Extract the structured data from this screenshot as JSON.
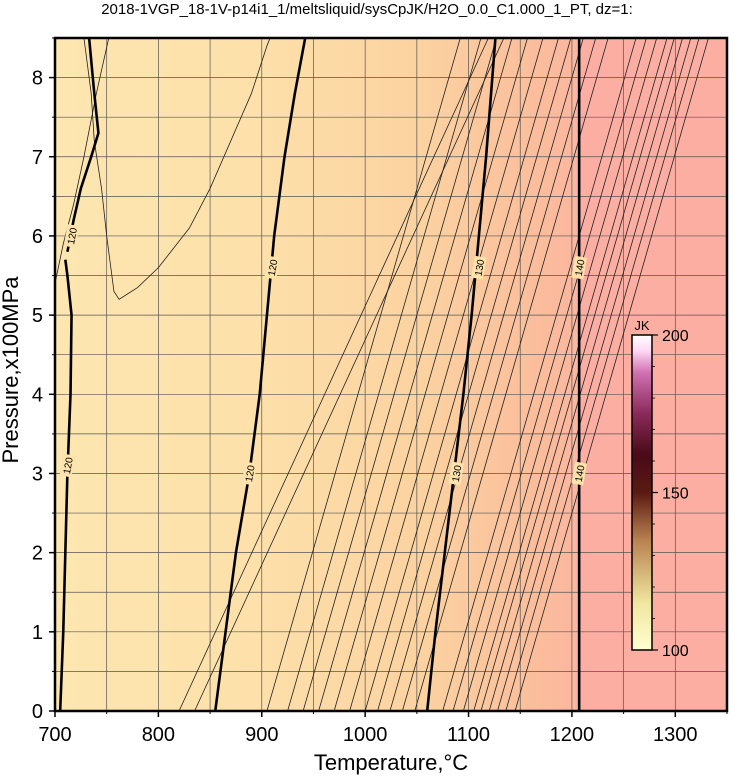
{
  "chart_data": {
    "type": "contour",
    "title": "2018-1VGP_18-1V-p14i1_1/meltsliquid/sysCpJK/H2O_0.0_C1.000_1_PT, dz=1:",
    "xlabel": "Temperature,°C",
    "ylabel": "Pressure,x100MPa",
    "xlim": [
      700,
      1350
    ],
    "ylim": [
      0,
      8.5
    ],
    "xticks": [
      700,
      800,
      900,
      1000,
      1100,
      1200,
      1300
    ],
    "yticks": [
      0,
      1,
      2,
      3,
      4,
      5,
      6,
      7,
      8
    ],
    "xtick_labels": [
      "700",
      "800",
      "900",
      "1000",
      "1100",
      "1200",
      "1300"
    ],
    "ytick_labels": [
      "0",
      "1",
      "2",
      "3",
      "4",
      "5",
      "6",
      "7",
      "8"
    ],
    "grid": true,
    "colorbar": {
      "label": "JK",
      "min": 100,
      "max": 200,
      "ticks": [
        100,
        150,
        200
      ],
      "tick_labels": [
        "100",
        "150",
        "200"
      ],
      "colors": [
        "#ffffd0",
        "#f0e6a0",
        "#c8a060",
        "#7a3a1a",
        "#4a0a10",
        "#7a1a4a",
        "#c060a0",
        "#ffd8f4",
        "#ffffff"
      ]
    },
    "fill_colors": {
      "low": "#fde3ab",
      "mid": "#fbd09d",
      "high": "#fcaea2"
    },
    "major_contours": [
      {
        "level": 120,
        "label": "120",
        "points": [
          [
            705,
            0
          ],
          [
            708,
            1
          ],
          [
            710,
            2
          ],
          [
            712,
            3
          ],
          [
            715,
            4
          ],
          [
            716,
            5
          ],
          [
            712,
            5.5
          ],
          [
            710,
            5.7
          ]
        ],
        "label_at": [
          712,
          3.1
        ]
      },
      {
        "level": 120,
        "label": "120",
        "points": [
          [
            712,
            5.8
          ],
          [
            718,
            6.2
          ],
          [
            725,
            6.6
          ],
          [
            735,
            7.0
          ],
          [
            742,
            7.3
          ],
          [
            738,
            7.8
          ],
          [
            733,
            8.5
          ]
        ],
        "label_at": [
          716,
          6.0
        ]
      },
      {
        "level": 120,
        "label": "120",
        "points": [
          [
            855,
            0
          ],
          [
            865,
            1
          ],
          [
            875,
            2
          ],
          [
            888,
            3
          ],
          [
            898,
            4
          ],
          [
            905,
            5
          ],
          [
            912,
            6
          ],
          [
            922,
            7
          ],
          [
            932,
            7.8
          ],
          [
            942,
            8.5
          ]
        ],
        "label_at": [
          888,
          3.0
        ]
      },
      {
        "level": 130,
        "label": "130",
        "points": [
          [
            1060,
            0
          ],
          [
            1068,
            1
          ],
          [
            1077,
            2
          ],
          [
            1086,
            3
          ],
          [
            1095,
            4
          ],
          [
            1103,
            5
          ],
          [
            1110,
            6
          ],
          [
            1117,
            7
          ],
          [
            1123,
            8
          ],
          [
            1126,
            8.5
          ]
        ],
        "label_at": [
          1088,
          3.0
        ]
      },
      {
        "level": 140,
        "label": "140",
        "points": [
          [
            1207,
            0
          ],
          [
            1207,
            8.5
          ]
        ],
        "label_at": [
          1207,
          3.0
        ]
      }
    ],
    "extra_labels": [
      {
        "label": "120",
        "at": [
          910,
          5.6
        ]
      },
      {
        "label": "130",
        "at": [
          1110,
          5.6
        ]
      },
      {
        "label": "140",
        "at": [
          1207,
          5.6
        ]
      }
    ],
    "minor_contours": {
      "bottom_x": [
        820,
        835,
        905,
        925,
        940,
        955,
        970,
        985,
        1000,
        1012,
        1024,
        1036,
        1048,
        1075,
        1085,
        1095,
        1105,
        1112,
        1120,
        1128,
        1136,
        1145
      ],
      "slope": 22
    }
  }
}
